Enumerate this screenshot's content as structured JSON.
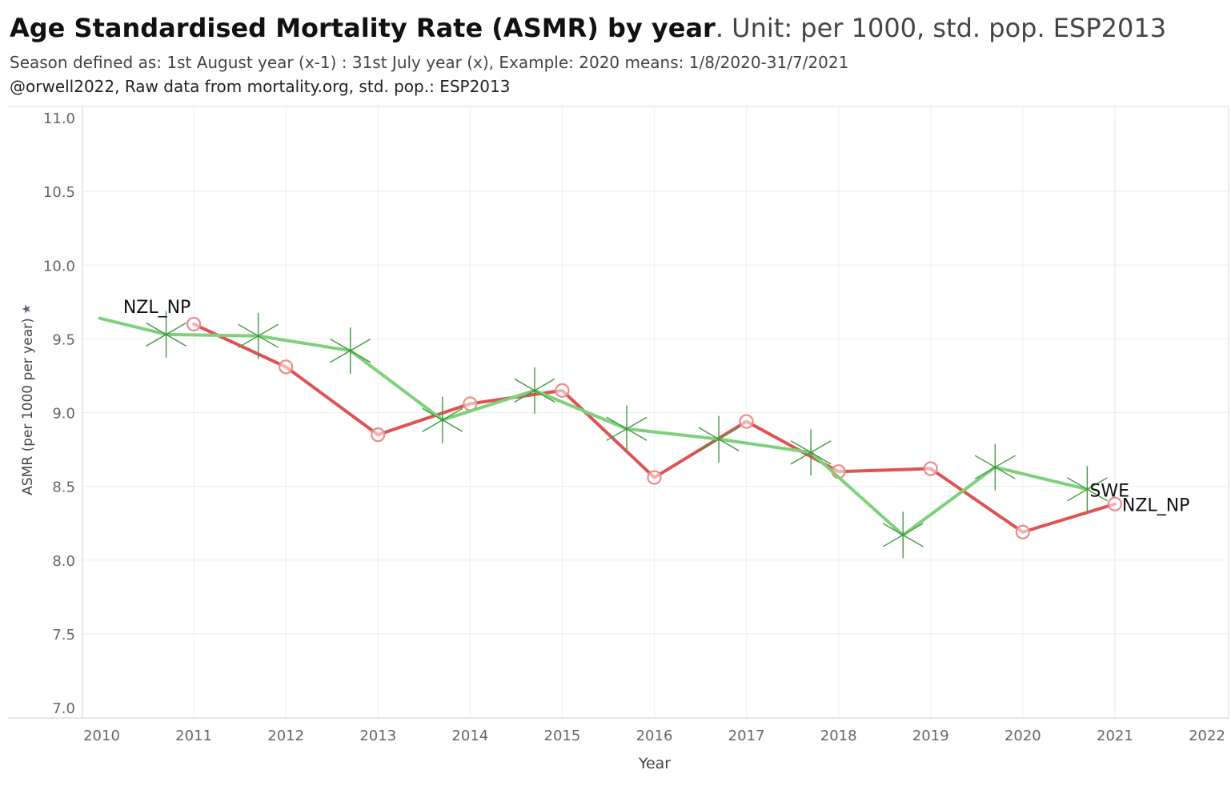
{
  "header": {
    "title_bold": "Age Standardised Mortality Rate (ASMR) by year",
    "title_rest": ". Unit: per 1000, std. pop. ESP2013",
    "subtitle_1": "Season defined as: 1st August year (x-1) : 31st July  year (x), Example: 2020 means: 1/8/2020-31/7/2021",
    "subtitle_2": "@orwell2022,  Raw data from mortality.org, std. pop.: ESP2013"
  },
  "chart_data": {
    "type": "line",
    "xlabel": "Year",
    "ylabel": "ASMR (per 1000 per year)",
    "xlim": [
      2010,
      2022
    ],
    "ylim": [
      7.0,
      11.0
    ],
    "x_ticks": [
      2010,
      2011,
      2012,
      2013,
      2014,
      2015,
      2016,
      2017,
      2018,
      2019,
      2020,
      2021,
      2022
    ],
    "y_ticks": [
      "7.0",
      "7.5",
      "8.0",
      "8.5",
      "9.0",
      "9.5",
      "10.0",
      "10.5",
      "11.0"
    ],
    "grid": true,
    "series": [
      {
        "name": "NZL_NP",
        "color": "#e05252",
        "marker": "circle",
        "label_start": "NZL_NP",
        "label_end": "NZL_NP",
        "x": [
          2011,
          2012,
          2013,
          2014,
          2015,
          2016,
          2017,
          2018,
          2019,
          2020,
          2021
        ],
        "values": [
          9.6,
          9.31,
          8.85,
          9.06,
          9.15,
          8.56,
          8.94,
          8.6,
          8.62,
          8.19,
          8.38
        ]
      },
      {
        "name": "SWE",
        "color": "#7ed17a",
        "marker": "star",
        "label_end": "SWE",
        "x": [
          2009.98,
          2010.7,
          2011.7,
          2012.7,
          2013.7,
          2014.7,
          2015.7,
          2016.7,
          2017.7,
          2018.7,
          2019.7,
          2020.7
        ],
        "values": [
          9.64,
          9.53,
          9.52,
          9.42,
          8.95,
          9.15,
          8.89,
          8.82,
          8.73,
          8.17,
          8.63,
          8.48
        ]
      }
    ]
  }
}
